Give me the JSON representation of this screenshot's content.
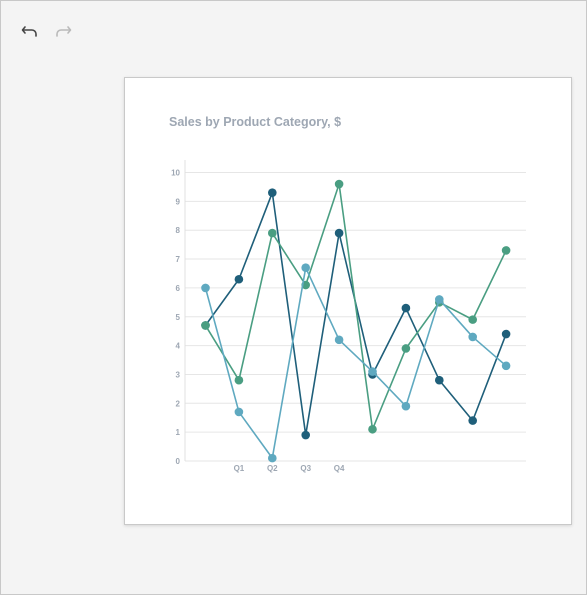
{
  "toolbar": {
    "undo_icon": "undo-icon",
    "redo_icon": "redo-icon"
  },
  "colors": {
    "series_dark": "#1f5f7a",
    "series_green": "#4a9e82",
    "series_light": "#5fa9c0",
    "grid": "#e6e6e6",
    "axis_text": "#9ea7b3"
  },
  "chart_data": {
    "type": "line",
    "title": "Sales by Product Category, $",
    "xlabel": "",
    "ylabel": "",
    "ylim": [
      0,
      10
    ],
    "yticks": [
      0,
      1,
      2,
      3,
      4,
      5,
      6,
      7,
      8,
      9,
      10
    ],
    "x_tick_labels": [
      "",
      "Q1",
      "Q2",
      "Q3",
      "Q4",
      "",
      "",
      "",
      "",
      "",
      ""
    ],
    "grid": true,
    "legend": "none",
    "series": [
      {
        "color": "#1f5f7a",
        "values": [
          4.7,
          6.3,
          9.3,
          0.9,
          7.9,
          3.0,
          5.3,
          2.8,
          1.4,
          4.4
        ]
      },
      {
        "color": "#4a9e82",
        "values": [
          4.7,
          2.8,
          7.9,
          6.1,
          9.6,
          1.1,
          3.9,
          5.5,
          4.9,
          7.3
        ]
      },
      {
        "color": "#5fa9c0",
        "values": [
          6.0,
          1.7,
          0.1,
          6.7,
          4.2,
          3.1,
          1.9,
          5.6,
          4.3,
          3.3
        ]
      }
    ]
  }
}
